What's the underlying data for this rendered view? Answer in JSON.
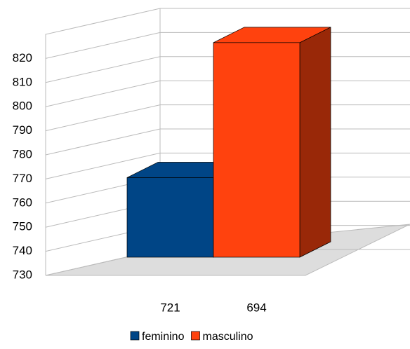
{
  "chart_data": {
    "type": "bar3d",
    "categories": [
      "721",
      "694"
    ],
    "series": [
      {
        "name": "feminino",
        "color": "#004586",
        "values": [
          763,
          null
        ]
      },
      {
        "name": "masculino",
        "color": "#ff420e",
        "values": [
          null,
          819
        ]
      }
    ],
    "ylim": [
      730,
      830
    ],
    "yticks": [
      730,
      740,
      750,
      760,
      770,
      780,
      790,
      800,
      810,
      820
    ],
    "grid": true
  }
}
